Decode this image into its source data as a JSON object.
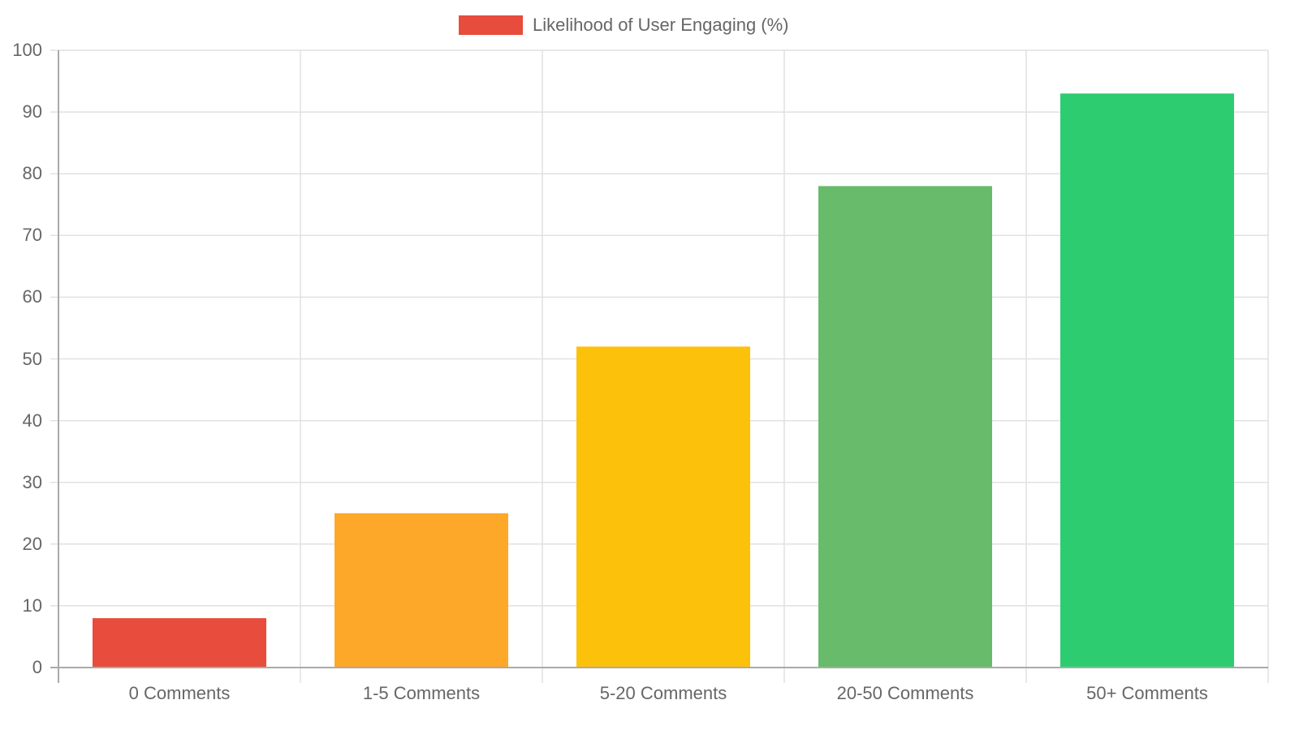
{
  "chart_data": {
    "type": "bar",
    "title": "",
    "legend": [
      {
        "label": "Likelihood of User Engaging (%)",
        "color": "#e74c3c"
      }
    ],
    "legend_position": "top",
    "categories": [
      "0 Comments",
      "1-5 Comments",
      "5-20 Comments",
      "20-50 Comments",
      "50+ Comments"
    ],
    "series": [
      {
        "name": "Likelihood of User Engaging (%)",
        "values": [
          8,
          25,
          52,
          78,
          93
        ],
        "colors": [
          "#e74c3c",
          "#fda829",
          "#fcc10a",
          "#67bb6a",
          "#2ecc71"
        ]
      }
    ],
    "xlabel": "",
    "ylabel": "",
    "ylim": [
      0,
      100
    ],
    "yticks": [
      "100",
      "90",
      "80",
      "70",
      "60",
      "50",
      "40",
      "30",
      "20",
      "10",
      "0"
    ],
    "grid": true
  }
}
